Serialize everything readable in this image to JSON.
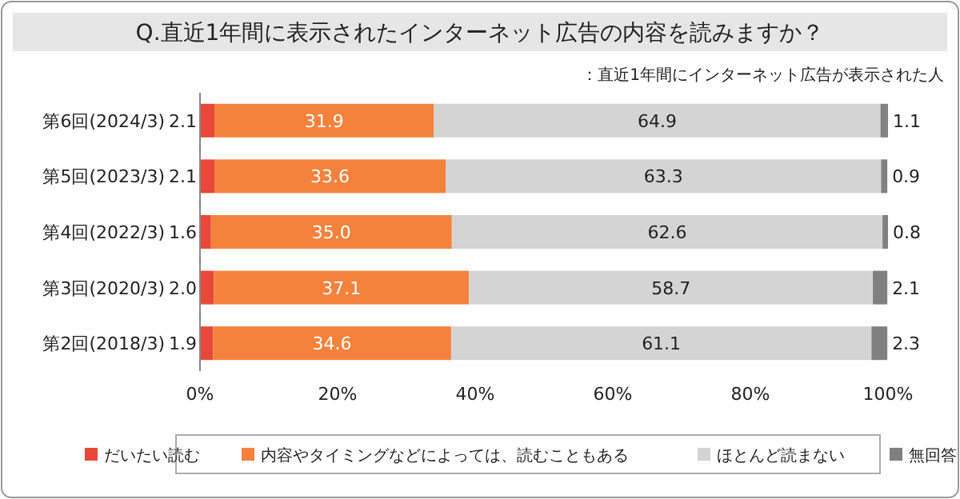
{
  "chart_data": {
    "type": "bar",
    "orientation": "horizontal",
    "stacked": true,
    "title": "Q.直近1年間に表示されたインターネット広告の内容を読みますか？",
    "subtitle": "：直近1年間にインターネット広告が表示された人",
    "categories": [
      "第6回(2024/3)",
      "第5回(2023/3)",
      "第4回(2022/3)",
      "第3回(2020/3)",
      "第2回(2018/3)"
    ],
    "series": [
      {
        "name": "だいたい読む",
        "color": "#e8483a",
        "values": [
          2.1,
          2.1,
          1.6,
          2.0,
          1.9
        ],
        "value_labels": [
          "2.1",
          "2.1",
          "1.6",
          "2.0",
          "1.9"
        ]
      },
      {
        "name": "内容やタイミングなどによっては、読むこともある",
        "color": "#f4823c",
        "values": [
          31.9,
          33.6,
          35.0,
          37.1,
          34.6
        ],
        "value_labels": [
          "31.9",
          "33.6",
          "35.0",
          "37.1",
          "34.6"
        ]
      },
      {
        "name": "ほとんど読まない",
        "color": "#d4d4d4",
        "values": [
          64.9,
          63.3,
          62.6,
          58.7,
          61.1
        ],
        "value_labels": [
          "64.9",
          "63.3",
          "62.6",
          "58.7",
          "61.1"
        ]
      },
      {
        "name": "無回答",
        "color": "#808080",
        "values": [
          1.1,
          0.9,
          0.8,
          2.1,
          2.3
        ],
        "value_labels": [
          "1.1",
          "0.9",
          "0.8",
          "2.1",
          "2.3"
        ]
      }
    ],
    "xlim": [
      0,
      100
    ],
    "xticks": [
      {
        "value": 0,
        "label": "0%"
      },
      {
        "value": 20,
        "label": "20%"
      },
      {
        "value": 40,
        "label": "40%"
      },
      {
        "value": 60,
        "label": "60%"
      },
      {
        "value": 80,
        "label": "80%"
      },
      {
        "value": 100,
        "label": "100%"
      }
    ],
    "legend": "bottom"
  }
}
